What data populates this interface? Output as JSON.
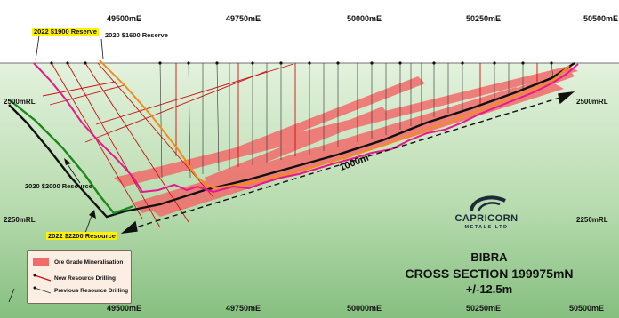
{
  "colors": {
    "sky": "#ffffff",
    "ground_top": "#dff0d8",
    "ground_bottom": "#8fc48a",
    "ore": "#f26b6b",
    "reserve_2022": "#e6198c",
    "reserve_2020": "#f28c1e",
    "resource_2020": "#1b8a1b",
    "resource_2022": "#111111",
    "new_drilling": "#cc1111",
    "previous_drilling": "#333333"
  },
  "eastings_top": [
    "49500mE",
    "49750mE",
    "50000mE",
    "50250mE",
    "50500mE"
  ],
  "eastings_bottom": [
    "49500mE",
    "49750mE",
    "50000mE",
    "50250mE",
    "50500mE"
  ],
  "rl_left": [
    "2500mRL",
    "2250mRL"
  ],
  "rl_right": [
    "2500mRL",
    "2250mRL"
  ],
  "labels": {
    "reserve_2022": "2022 $1900 Reserve",
    "reserve_2020": "2020 $1600 Reserve",
    "resource_2020": "2020 $2000 Resource",
    "resource_2022": "2022 $2200 Resource",
    "scale_bar": "1000m"
  },
  "legend": {
    "ore": "Ore Grade Mineralisation",
    "new_drilling": "New Resource Drilling",
    "previous_drilling": "Previous Resource Drilling"
  },
  "title": {
    "line1": "BIBRA",
    "line2": "CROSS SECTION 199975mN",
    "line3": "+/-12.5m"
  },
  "logo": {
    "name": "CAPRICORN",
    "sub": "METALS LTD"
  }
}
